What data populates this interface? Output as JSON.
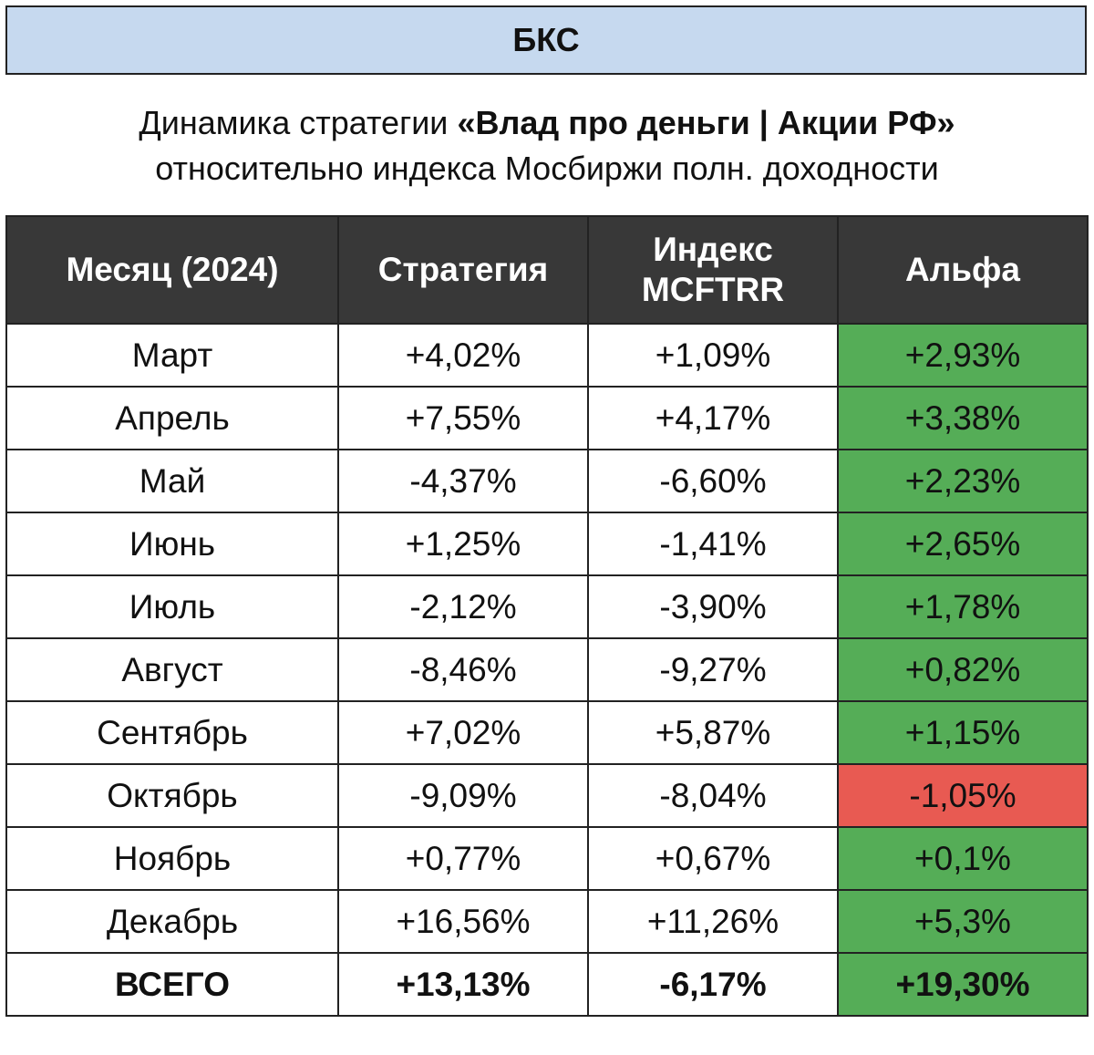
{
  "header": {
    "title": "БКС"
  },
  "subtitle": {
    "line1_plain": "Динамика стратегии",
    "line1_bold": "«Влад про деньги | Акции РФ»",
    "line2": "относительно индекса Мосбиржи полн. доходности"
  },
  "table": {
    "columns": [
      "Месяц (2024)",
      "Стратегия",
      "Индекс MCFTRR",
      "Альфа"
    ],
    "rows": [
      [
        "Март",
        "+4,02%",
        "+1,09%",
        "+2,93%"
      ],
      [
        "Апрель",
        "+7,55%",
        "+4,17%",
        "+3,38%"
      ],
      [
        "Май",
        "-4,37%",
        "-6,60%",
        "+2,23%"
      ],
      [
        "Июнь",
        "+1,25%",
        "-1,41%",
        "+2,65%"
      ],
      [
        "Июль",
        "-2,12%",
        "-3,90%",
        "+1,78%"
      ],
      [
        "Август",
        "-8,46%",
        "-9,27%",
        "+0,82%"
      ],
      [
        "Сентябрь",
        "+7,02%",
        "+5,87%",
        "+1,15%"
      ],
      [
        "Октябрь",
        "-9,09%",
        "-8,04%",
        "-1,05%"
      ],
      [
        "Ноябрь",
        "+0,77%",
        "+0,67%",
        "+0,1%"
      ],
      [
        "Декабрь",
        "+16,56%",
        "+11,26%",
        "+5,3%"
      ]
    ],
    "total": [
      "ВСЕГО",
      "+13,13%",
      "-6,17%",
      "+19,30%"
    ],
    "positive_color": "#55ad57",
    "negative_color": "#e85a52"
  }
}
